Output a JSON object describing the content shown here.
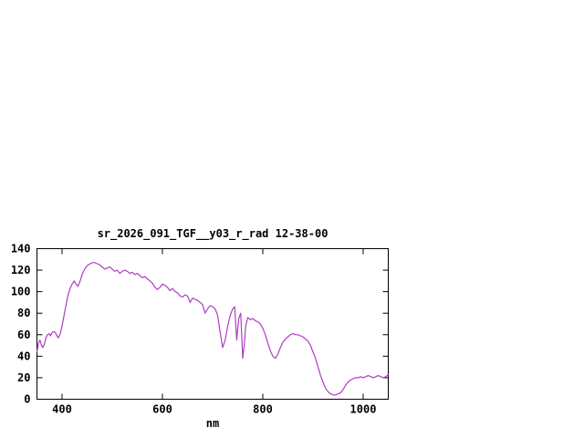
{
  "window": {
    "background": "#ffffff"
  },
  "chart_data": {
    "type": "line",
    "title": "sr_2026_091_TGF__y03_r_rad 12-38-00",
    "xlabel": "nm",
    "ylabel": "",
    "xlim": [
      350,
      1050
    ],
    "ylim": [
      0,
      140
    ],
    "xticks": [
      400,
      600,
      800,
      1000
    ],
    "yticks": [
      0,
      20,
      40,
      60,
      80,
      100,
      120,
      140
    ],
    "grid": false,
    "legend": "none",
    "axis_color": "#000000",
    "line_color": "#ad3fc0",
    "series": [
      {
        "name": "sr_2026_091_TGF__y03_r_rad",
        "x": [
          350,
          353,
          356,
          359,
          362,
          365,
          368,
          371,
          374,
          377,
          380,
          384,
          388,
          392,
          396,
          400,
          404,
          408,
          412,
          416,
          420,
          424,
          428,
          432,
          436,
          440,
          444,
          448,
          452,
          456,
          460,
          465,
          470,
          475,
          480,
          485,
          490,
          495,
          500,
          505,
          510,
          515,
          520,
          525,
          530,
          535,
          540,
          545,
          550,
          555,
          560,
          565,
          570,
          575,
          580,
          585,
          590,
          595,
          600,
          605,
          610,
          615,
          620,
          625,
          630,
          635,
          640,
          645,
          650,
          655,
          660,
          665,
          670,
          675,
          680,
          685,
          690,
          695,
          700,
          705,
          710,
          715,
          720,
          725,
          730,
          735,
          740,
          744,
          748,
          752,
          756,
          760,
          763,
          766,
          770,
          775,
          780,
          785,
          790,
          795,
          800,
          805,
          810,
          815,
          820,
          825,
          830,
          835,
          840,
          845,
          850,
          855,
          860,
          865,
          870,
          875,
          880,
          885,
          890,
          895,
          900,
          905,
          910,
          915,
          920,
          925,
          930,
          935,
          940,
          945,
          950,
          955,
          960,
          965,
          970,
          975,
          980,
          985,
          990,
          995,
          1000,
          1005,
          1010,
          1015,
          1020,
          1025,
          1030,
          1035,
          1040,
          1045,
          1050
        ],
        "y": [
          44,
          52,
          55,
          50,
          48,
          52,
          57,
          60,
          61,
          59,
          62,
          63,
          61,
          57,
          60,
          68,
          78,
          88,
          97,
          103,
          107,
          110,
          107,
          105,
          110,
          116,
          120,
          123,
          125,
          126,
          127,
          127,
          126,
          125,
          123,
          121,
          122,
          123,
          121,
          119,
          120,
          117,
          119,
          120,
          119,
          117,
          118,
          116,
          117,
          115,
          113,
          114,
          112,
          110,
          108,
          104,
          102,
          104,
          107,
          106,
          104,
          101,
          103,
          100,
          99,
          96,
          95,
          97,
          96,
          90,
          94,
          93,
          92,
          90,
          88,
          80,
          84,
          87,
          86,
          84,
          78,
          62,
          48,
          55,
          68,
          78,
          84,
          86,
          55,
          75,
          80,
          38,
          50,
          68,
          76,
          74,
          75,
          73,
          72,
          70,
          66,
          60,
          52,
          45,
          40,
          38,
          42,
          48,
          53,
          56,
          58,
          60,
          61,
          60,
          60,
          59,
          58,
          56,
          54,
          50,
          44,
          38,
          30,
          22,
          16,
          10,
          7,
          5,
          4,
          4,
          5,
          6,
          9,
          13,
          16,
          18,
          19,
          20,
          20,
          21,
          20,
          21,
          22,
          21,
          20,
          21,
          22,
          21,
          20,
          21,
          23
        ]
      }
    ]
  }
}
